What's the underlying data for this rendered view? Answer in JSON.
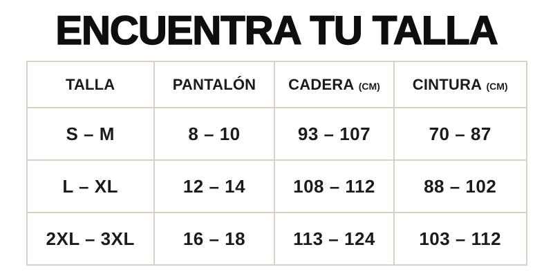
{
  "title": "ENCUENTRA TU TALLA",
  "colors": {
    "background": "#ffffff",
    "text": "#1c1b19",
    "title_text": "#0f0e0c",
    "table_border": "#d8d1c4"
  },
  "chart_data": {
    "type": "table",
    "title": "ENCUENTRA TU TALLA",
    "columns": [
      {
        "label": "TALLA",
        "unit": ""
      },
      {
        "label": "PANTALÓN",
        "unit": ""
      },
      {
        "label": "CADERA",
        "unit": "(CM)"
      },
      {
        "label": "CINTURA",
        "unit": "(CM)"
      }
    ],
    "rows": [
      [
        "S – M",
        "8 – 10",
        "93 – 107",
        "70 – 87"
      ],
      [
        "L – XL",
        "12 – 14",
        "108 – 112",
        "88 – 102"
      ],
      [
        "2XL – 3XL",
        "16 – 18",
        "113 – 124",
        "103 – 112"
      ]
    ]
  }
}
